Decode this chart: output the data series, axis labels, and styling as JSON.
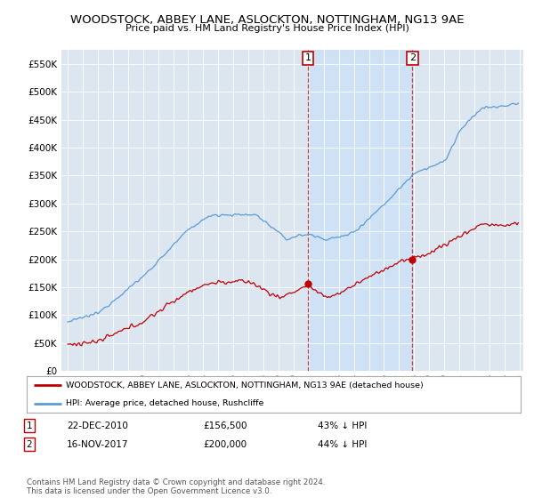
{
  "title": "WOODSTOCK, ABBEY LANE, ASLOCKTON, NOTTINGHAM, NG13 9AE",
  "subtitle": "Price paid vs. HM Land Registry's House Price Index (HPI)",
  "legend_line1": "WOODSTOCK, ABBEY LANE, ASLOCKTON, NOTTINGHAM, NG13 9AE (detached house)",
  "legend_line2": "HPI: Average price, detached house, Rushcliffe",
  "table_rows": [
    {
      "num": "1",
      "date": "22-DEC-2010",
      "price": "£156,500",
      "pct": "43% ↓ HPI"
    },
    {
      "num": "2",
      "date": "16-NOV-2017",
      "price": "£200,000",
      "pct": "44% ↓ HPI"
    }
  ],
  "footnote": "Contains HM Land Registry data © Crown copyright and database right 2024.\nThis data is licensed under the Open Government Licence v3.0.",
  "hpi_color": "#5b9bd5",
  "price_color": "#c00000",
  "ylim": [
    0,
    575000
  ],
  "yticks": [
    0,
    50000,
    100000,
    150000,
    200000,
    250000,
    300000,
    350000,
    400000,
    450000,
    500000,
    550000
  ],
  "background_color": "#ffffff",
  "plot_bg_color": "#dce6f1",
  "shade_color": "#cce0f5",
  "sale1_t": 2010.958,
  "sale1_price": 156500,
  "sale2_t": 2017.875,
  "sale2_price": 200000
}
